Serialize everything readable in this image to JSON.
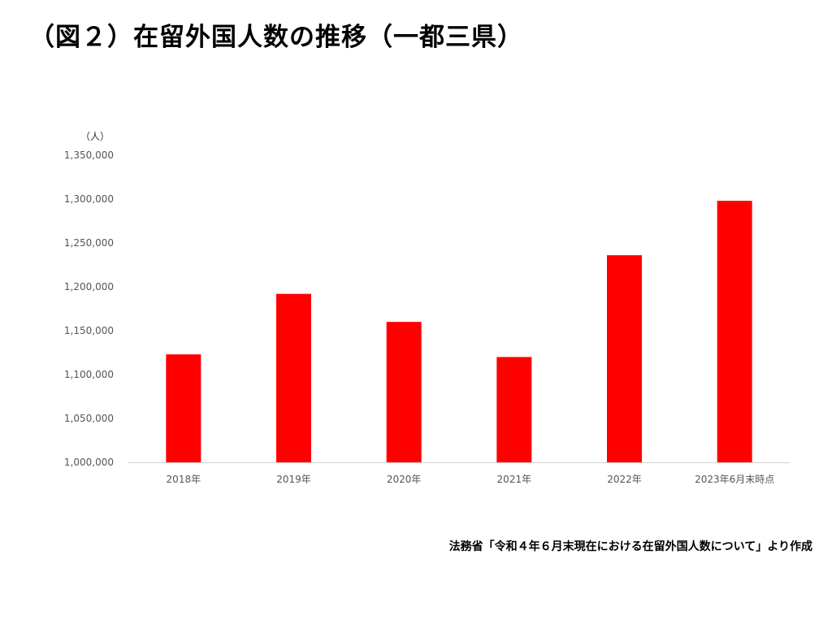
{
  "page": {
    "title": "（図２）在留外国人数の推移（一都三県）",
    "source": "法務省「令和４年６月末現在における在留外国人数について」より作成"
  },
  "chart_data": {
    "type": "bar",
    "title": "",
    "xlabel": "",
    "ylabel": "（人）",
    "categories": [
      "2018年",
      "2019年",
      "2020年",
      "2021年",
      "2022年",
      "2023年6月末時点"
    ],
    "values": [
      1123000,
      1192000,
      1160000,
      1120000,
      1236000,
      1298000
    ],
    "ylim": [
      1000000,
      1350000
    ],
    "yticks": [
      1000000,
      1050000,
      1100000,
      1150000,
      1200000,
      1250000,
      1300000,
      1350000
    ],
    "ytick_labels": [
      "1,000,000",
      "1,050,000",
      "1,100,000",
      "1,150,000",
      "1,200,000",
      "1,250,000",
      "1,300,000",
      "1,350,000"
    ],
    "bar_color": "#ff0000",
    "grid": false,
    "legend": "none"
  }
}
